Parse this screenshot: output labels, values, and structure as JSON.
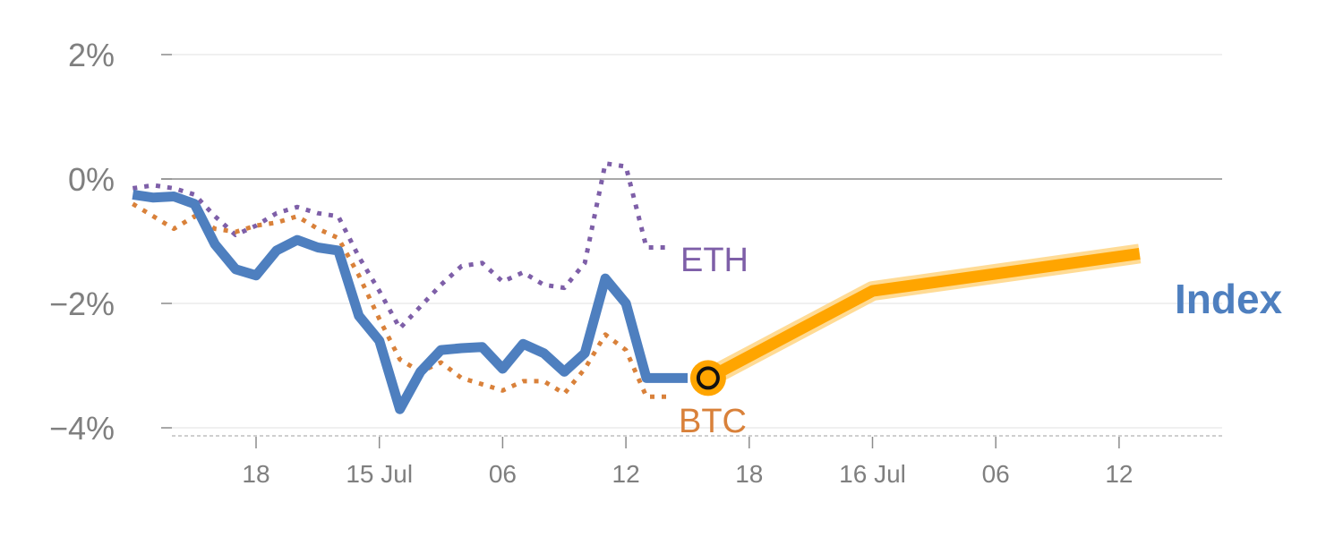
{
  "chart_data": {
    "type": "line",
    "x_unit": "hours",
    "x_range": [
      0,
      48
    ],
    "ylim": [
      -4,
      2
    ],
    "yticks": [
      {
        "value": 2,
        "label": "2%"
      },
      {
        "value": 0,
        "label": "0%"
      },
      {
        "value": -2,
        "label": "−2%"
      },
      {
        "value": -4,
        "label": "−4%"
      }
    ],
    "xticks": [
      {
        "value": 3,
        "label": "18"
      },
      {
        "value": 9,
        "label": "15 Jul"
      },
      {
        "value": 15,
        "label": "06"
      },
      {
        "value": 21,
        "label": "12"
      },
      {
        "value": 27,
        "label": "18"
      },
      {
        "value": 33,
        "label": "16 Jul"
      },
      {
        "value": 39,
        "label": "06"
      },
      {
        "value": 45,
        "label": "12"
      }
    ],
    "series": [
      {
        "name": "Index",
        "color": "#4e7fbf",
        "style": "solid",
        "x": [
          -3,
          -2,
          -1,
          0,
          1,
          2,
          3,
          4,
          5,
          6,
          7,
          8,
          9,
          10,
          11,
          12,
          13,
          14,
          15,
          16,
          17,
          18,
          19,
          20,
          21,
          22,
          23,
          24
        ],
        "values": [
          -0.25,
          -0.3,
          -0.28,
          -0.4,
          -1.05,
          -1.45,
          -1.55,
          -1.15,
          -0.98,
          -1.1,
          -1.15,
          -2.2,
          -2.6,
          -3.7,
          -3.1,
          -2.75,
          -2.72,
          -2.7,
          -3.05,
          -2.65,
          -2.8,
          -3.1,
          -2.8,
          -1.6,
          -2.0,
          -3.2,
          -3.2,
          -3.2
        ]
      },
      {
        "name": "ETH",
        "color": "#7e5fa8",
        "style": "dotted",
        "x": [
          -3,
          -2,
          -1,
          0,
          1,
          2,
          3,
          4,
          5,
          6,
          7,
          8,
          9,
          10,
          11,
          12,
          13,
          14,
          15,
          16,
          17,
          18,
          19,
          20,
          21,
          22,
          23
        ],
        "values": [
          -0.15,
          -0.1,
          -0.15,
          -0.25,
          -0.6,
          -0.9,
          -0.75,
          -0.55,
          -0.45,
          -0.55,
          -0.6,
          -1.25,
          -1.8,
          -2.4,
          -2.05,
          -1.7,
          -1.4,
          -1.35,
          -1.65,
          -1.5,
          -1.7,
          -1.75,
          -1.35,
          0.25,
          0.2,
          -1.1,
          -1.1
        ]
      },
      {
        "name": "BTC",
        "color": "#d9813a",
        "style": "dotted",
        "x": [
          -3,
          -2,
          -1,
          0,
          1,
          2,
          3,
          4,
          5,
          6,
          7,
          8,
          9,
          10,
          11,
          12,
          13,
          14,
          15,
          16,
          17,
          18,
          19,
          20,
          21,
          22,
          23
        ],
        "values": [
          -0.4,
          -0.6,
          -0.8,
          -0.6,
          -0.8,
          -0.85,
          -0.75,
          -0.7,
          -0.6,
          -0.8,
          -0.95,
          -1.55,
          -2.25,
          -2.9,
          -3.1,
          -2.95,
          -3.2,
          -3.3,
          -3.4,
          -3.25,
          -3.25,
          -3.45,
          -3.05,
          -2.5,
          -2.75,
          -3.5,
          -3.5
        ]
      }
    ],
    "projection": {
      "color": "#ffa500",
      "x": [
        25,
        33,
        46
      ],
      "values": [
        -3.2,
        -1.8,
        -1.2
      ]
    },
    "marker": {
      "x": 25,
      "value": -3.2
    },
    "labels": {
      "index": "Index",
      "eth": "ETH",
      "btc": "BTC"
    }
  }
}
